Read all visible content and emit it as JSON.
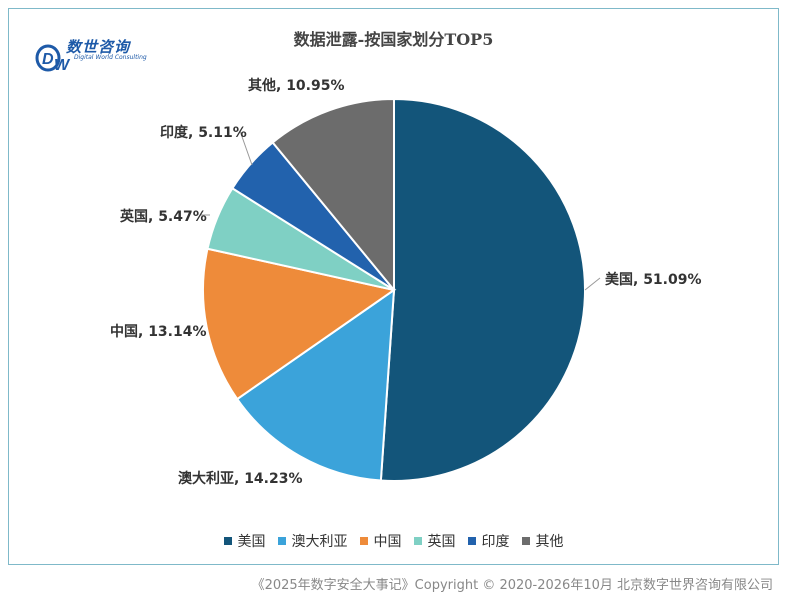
{
  "title": "数据泄露-按国家划分TOP5",
  "logo": {
    "cn": "数世咨询",
    "en": "Digital World Consulting"
  },
  "footer": "《2025年数字安全大事记》Copyright © 2020-2026年10月 北京数字世界咨询有限公司",
  "chart_data": {
    "type": "pie",
    "title": "数据泄露-按国家划分TOP5",
    "legend_position": "bottom",
    "slices": [
      {
        "name": "美国",
        "value": 51.09,
        "label": "美国, 51.09%",
        "color": "#13557a"
      },
      {
        "name": "澳大利亚",
        "value": 14.23,
        "label": "澳大利亚, 14.23%",
        "color": "#3ba3da"
      },
      {
        "name": "中国",
        "value": 13.14,
        "label": "中国, 13.14%",
        "color": "#ee8b3a"
      },
      {
        "name": "英国",
        "value": 5.47,
        "label": "英国, 5.47%",
        "color": "#7fd0c4"
      },
      {
        "name": "印度",
        "value": 5.11,
        "label": "印度, 5.11%",
        "color": "#2262ad"
      },
      {
        "name": "其他",
        "value": 10.95,
        "label": "其他, 10.95%",
        "color": "#6c6c6c"
      }
    ]
  }
}
